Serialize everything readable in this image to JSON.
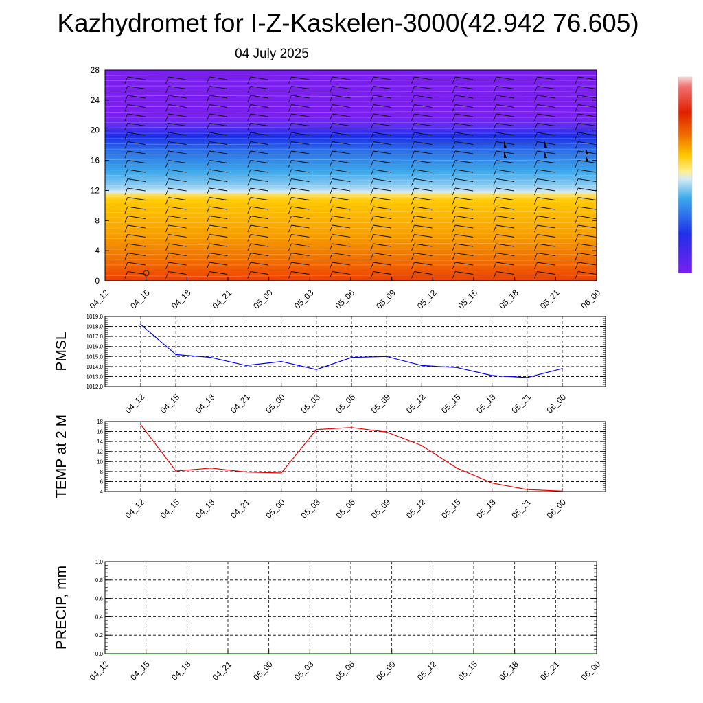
{
  "header": {
    "title": "Kazhydromet for I-Z-Kaskelen-3000(42.942 76.605)",
    "date": "04 July 2025"
  },
  "colors": {
    "pmsl_line": "#0000ee",
    "temp_line": "#ee0000",
    "precip_line": "#006600",
    "profile_top": "#7a1ff0",
    "profile_band": "#1b2ae8",
    "profile_mid": "#3aa8ec",
    "profile_light": "#cfe6f3",
    "profile_warm": "#ffc800",
    "profile_bottom": "#f04000"
  },
  "chart_data": [
    {
      "type": "heatmap",
      "name": "vertical-profile",
      "x_ticks": [
        "04_12",
        "04_15",
        "04_18",
        "04_21",
        "05_00",
        "05_03",
        "05_06",
        "05_09",
        "05_12",
        "05_15",
        "05_18",
        "05_21",
        "06_00"
      ],
      "y_ticks": [
        0,
        4,
        8,
        12,
        16,
        20,
        24,
        28
      ],
      "ylim": [
        0,
        28
      ],
      "overlay": "wind-barbs",
      "colorbar": [
        "#7a1ff0",
        "#2030e8",
        "#3aa8ec",
        "#d5ebf5",
        "#fff08a",
        "#ffc800",
        "#f07000",
        "#e02000"
      ]
    },
    {
      "type": "line",
      "name": "pmsl",
      "ylabel": "PMSL",
      "categories": [
        "04_12",
        "04_15",
        "04_18",
        "04_21",
        "05_00",
        "05_03",
        "05_06",
        "05_09",
        "05_12",
        "05_15",
        "05_18",
        "05_21",
        "06_00"
      ],
      "values": [
        1018.2,
        1015.2,
        1014.9,
        1014.1,
        1014.5,
        1013.7,
        1014.9,
        1015.0,
        1014.1,
        1013.9,
        1013.1,
        1012.9,
        1013.8
      ],
      "ylim": [
        1012,
        1019
      ],
      "y_ticks": [
        "1012.0",
        "1013.0",
        "1014.0",
        "1015.0",
        "1016.0",
        "1017.0",
        "1018.0",
        "1019.0"
      ],
      "grid": true
    },
    {
      "type": "line",
      "name": "temp",
      "ylabel": "TEMP at 2 M",
      "categories": [
        "04_12",
        "04_15",
        "04_18",
        "04_21",
        "05_00",
        "05_03",
        "05_06",
        "05_09",
        "05_12",
        "05_15",
        "05_18",
        "05_21",
        "06_00"
      ],
      "values": [
        17.4,
        8.1,
        8.7,
        7.9,
        7.7,
        16.4,
        16.8,
        15.9,
        13.2,
        8.7,
        5.7,
        4.4,
        4.1
      ],
      "ylim": [
        4,
        18
      ],
      "y_ticks": [
        "4",
        "6",
        "8",
        "10",
        "12",
        "14",
        "16",
        "18"
      ],
      "grid": true
    },
    {
      "type": "line",
      "name": "precip",
      "ylabel": "PRECIP, mm",
      "categories": [
        "04_12",
        "04_15",
        "04_18",
        "04_21",
        "05_00",
        "05_03",
        "05_06",
        "05_09",
        "05_12",
        "05_15",
        "05_18",
        "05_21",
        "06_00"
      ],
      "values": [
        0,
        0,
        0,
        0,
        0,
        0,
        0,
        0,
        0,
        0,
        0,
        0,
        0
      ],
      "ylim": [
        0,
        1
      ],
      "y_ticks": [
        "0.0",
        "0.2",
        "0.4",
        "0.6",
        "0.8",
        "1.0"
      ],
      "grid": true
    }
  ]
}
